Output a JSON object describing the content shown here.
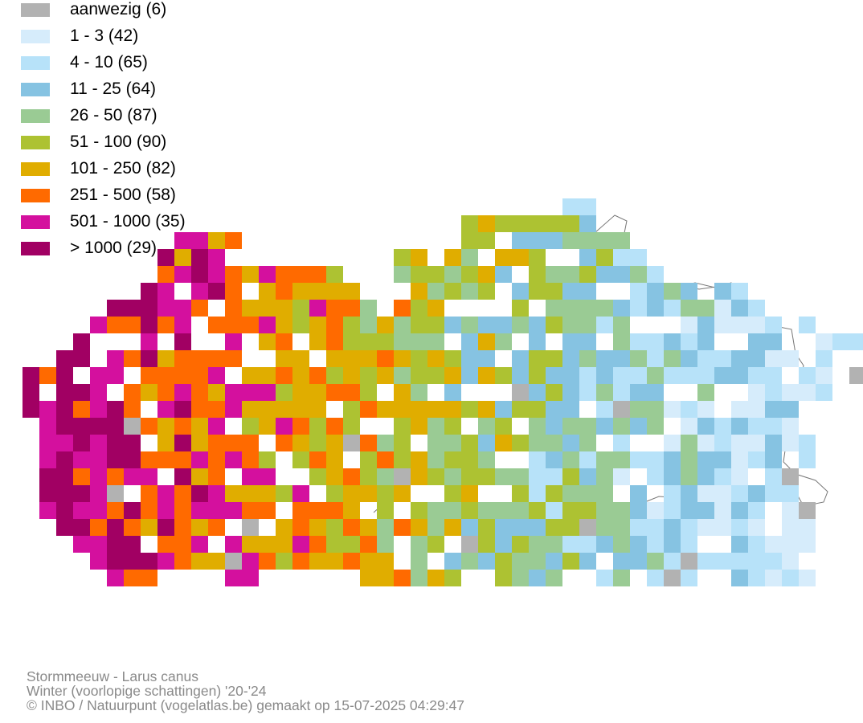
{
  "legend": {
    "items": [
      {
        "label": "aanwezig (6)",
        "color": "#b2b2b2"
      },
      {
        "label": "1 - 3 (42)",
        "color": "#d6ecfb"
      },
      {
        "label": "4 - 10 (65)",
        "color": "#b7e2f9"
      },
      {
        "label": "11 - 25 (64)",
        "color": "#86c3e2"
      },
      {
        "label": "26 - 50 (87)",
        "color": "#9acb94"
      },
      {
        "label": "51 - 100 (90)",
        "color": "#adc232"
      },
      {
        "label": "101 - 250 (82)",
        "color": "#e0ad00"
      },
      {
        "label": "251 - 500 (58)",
        "color": "#ff6a00"
      },
      {
        "label": "501 - 1000 (35)",
        "color": "#d4109e"
      },
      {
        "label": "> 1000 (29)",
        "color": "#a10063"
      }
    ]
  },
  "footer": {
    "line1": "Stormmeeuw - Larus canus",
    "line2": "Winter (voorlopige schattingen) '20-'24",
    "line3": "© INBO / Natuurpunt (vogelatlas.be) gemaakt op 15-07-2025 04:29:47"
  }
}
